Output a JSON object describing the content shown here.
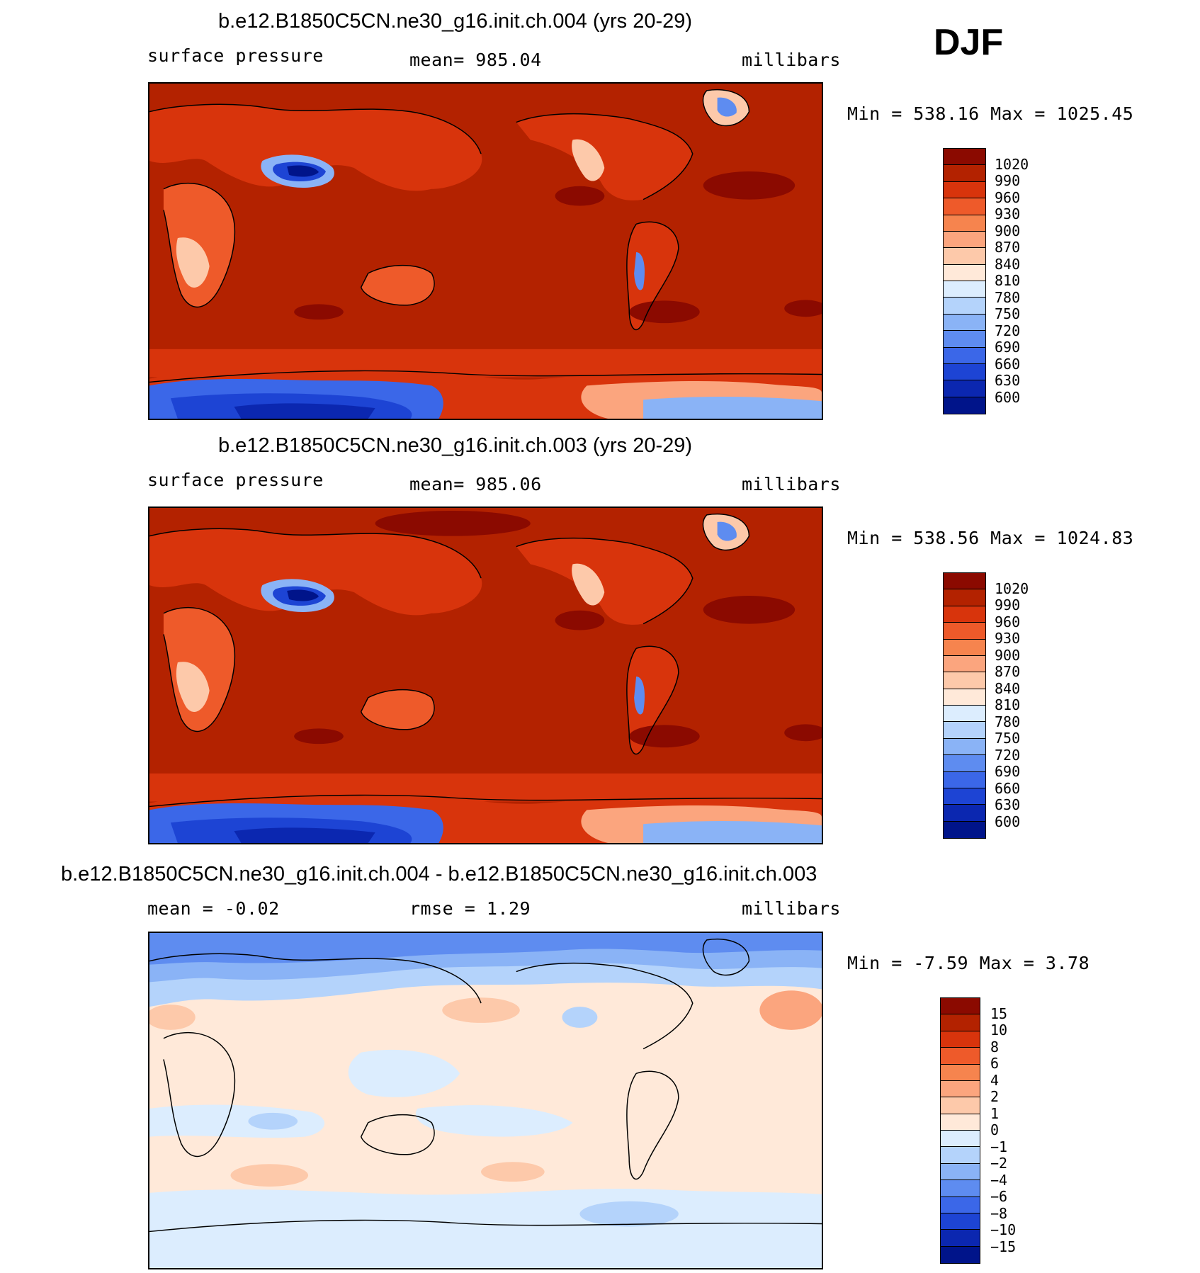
{
  "season": "DJF",
  "panels": [
    {
      "title": "b.e12.B1850C5CN.ne30_g16.init.ch.004 (yrs 20-29)",
      "left_label": "surface pressure",
      "center_label": "mean= 985.04",
      "units": "millibars",
      "minmax": "Min = 538.16 Max = 1025.45"
    },
    {
      "title": "b.e12.B1850C5CN.ne30_g16.init.ch.003 (yrs 20-29)",
      "left_label": "surface pressure",
      "center_label": "mean= 985.06",
      "units": "millibars",
      "minmax": "Min = 538.56 Max = 1024.83"
    },
    {
      "title": "b.e12.B1850C5CN.ne30_g16.init.ch.004 - b.e12.B1850C5CN.ne30_g16.init.ch.003",
      "left_label": "mean =  -0.02",
      "center_label": "rmse =   1.29",
      "units": "millibars",
      "minmax": "Min =  -7.59 Max =   3.78"
    }
  ],
  "colorbars": {
    "pressure": {
      "labels": [
        "1020",
        "990",
        "960",
        "930",
        "900",
        "870",
        "840",
        "810",
        "780",
        "750",
        "720",
        "690",
        "660",
        "630",
        "600"
      ],
      "colors": [
        "#8b0a00",
        "#b32200",
        "#d8340c",
        "#ee5a2a",
        "#f6844e",
        "#fba57e",
        "#fdc9aa",
        "#ffe9d9",
        "#dcedfe",
        "#b4d3fb",
        "#8ab3f6",
        "#5e8cf0",
        "#3b67e8",
        "#1d44d4",
        "#0b27b0",
        "#00148a"
      ]
    },
    "difference": {
      "labels": [
        "15",
        "10",
        "8",
        "6",
        "4",
        "2",
        "1",
        "0",
        "-1",
        "-2",
        "-4",
        "-6",
        "-8",
        "-10",
        "-15"
      ],
      "colors": [
        "#8b0a00",
        "#b32200",
        "#d8340c",
        "#ee5a2a",
        "#f6844e",
        "#fba57e",
        "#fdc9aa",
        "#ffe9d9",
        "#dcedfe",
        "#b4d3fb",
        "#8ab3f6",
        "#5e8cf0",
        "#3b67e8",
        "#1d44d4",
        "#0b27b0",
        "#00148a"
      ]
    }
  }
}
